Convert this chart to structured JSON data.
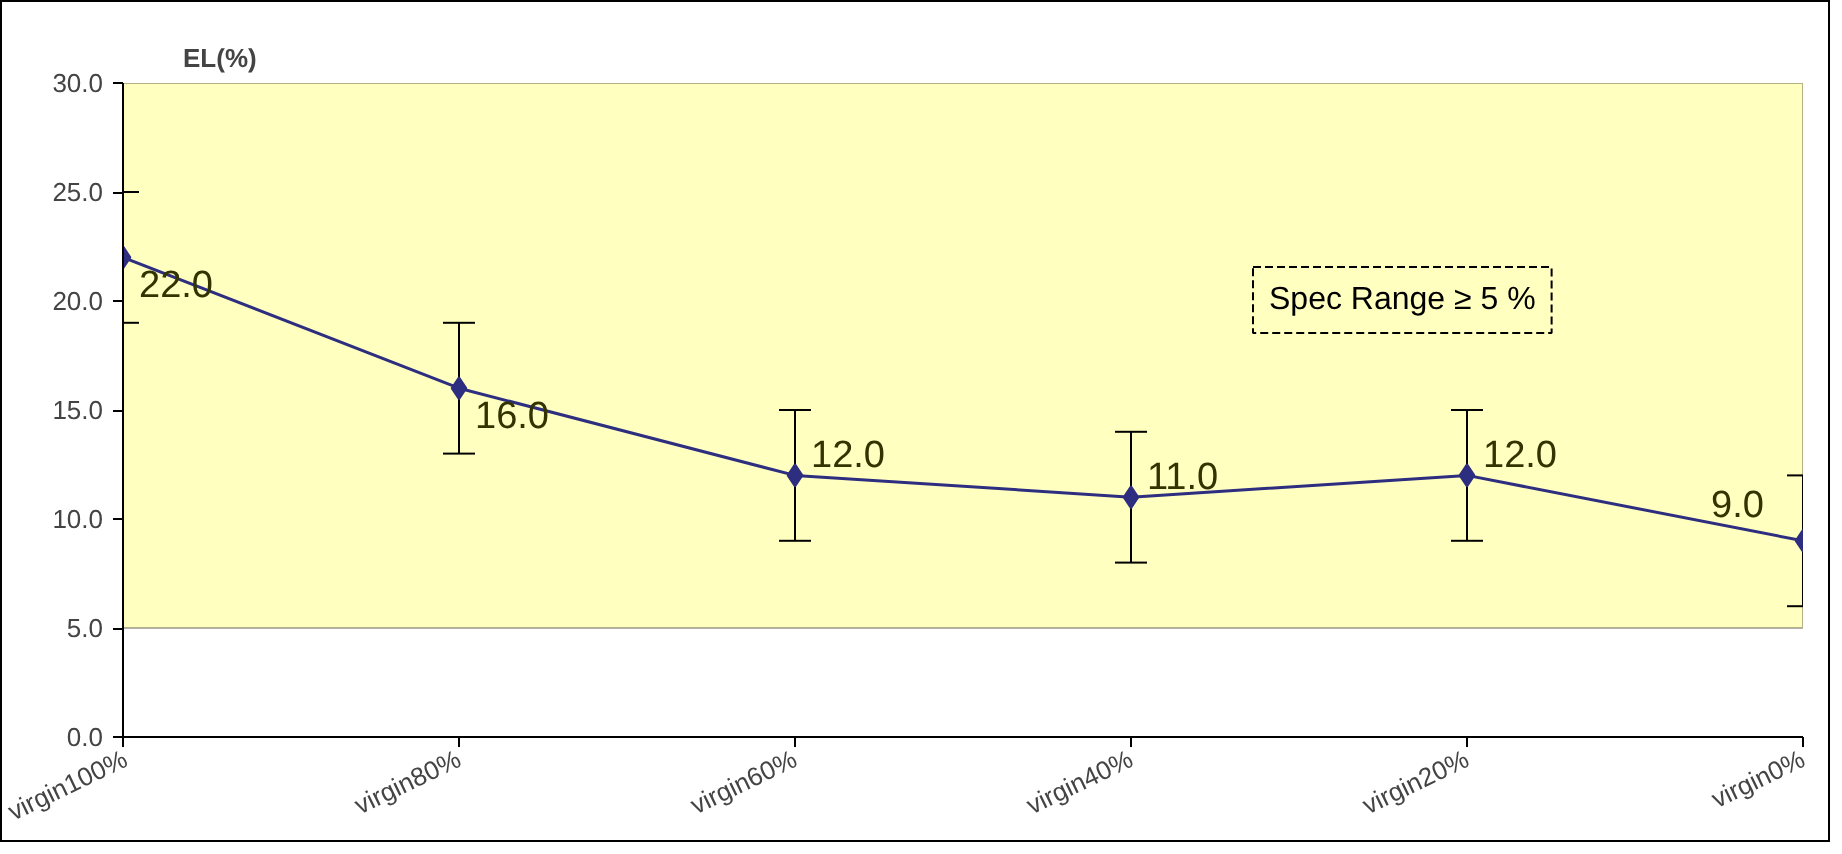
{
  "chart_data": {
    "type": "line",
    "ylabel": "EL(%)",
    "categories": [
      "virgin100%",
      "virgin80%",
      "virgin60%",
      "virgin40%",
      "virgin20%",
      "virgin0%"
    ],
    "series": [
      {
        "color": "#2e2e80",
        "values": [
          22,
          16,
          12,
          11,
          12,
          9
        ],
        "errors": [
          3,
          3,
          3,
          3,
          3,
          3
        ],
        "value_labels": [
          "22.0",
          "16.0",
          "12.0",
          "11.0",
          "12.0",
          "9.0"
        ]
      }
    ],
    "ylim": [
      0,
      30
    ],
    "yticks": [
      {
        "value": 0,
        "label": "0.0"
      },
      {
        "value": 5,
        "label": "5.0"
      },
      {
        "value": 10,
        "label": "10.0"
      },
      {
        "value": 15,
        "label": "15.0"
      },
      {
        "value": 20,
        "label": "20.0"
      },
      {
        "value": 25,
        "label": "25.0"
      },
      {
        "value": 30,
        "label": "30.0"
      }
    ],
    "bands": [
      {
        "axis": "y",
        "from": 5,
        "to": 30,
        "color": "#ffffc0",
        "label": "Spec Range ≥ 5 %"
      }
    ],
    "marker": "diamond",
    "line_style": "solid",
    "grid": false
  }
}
